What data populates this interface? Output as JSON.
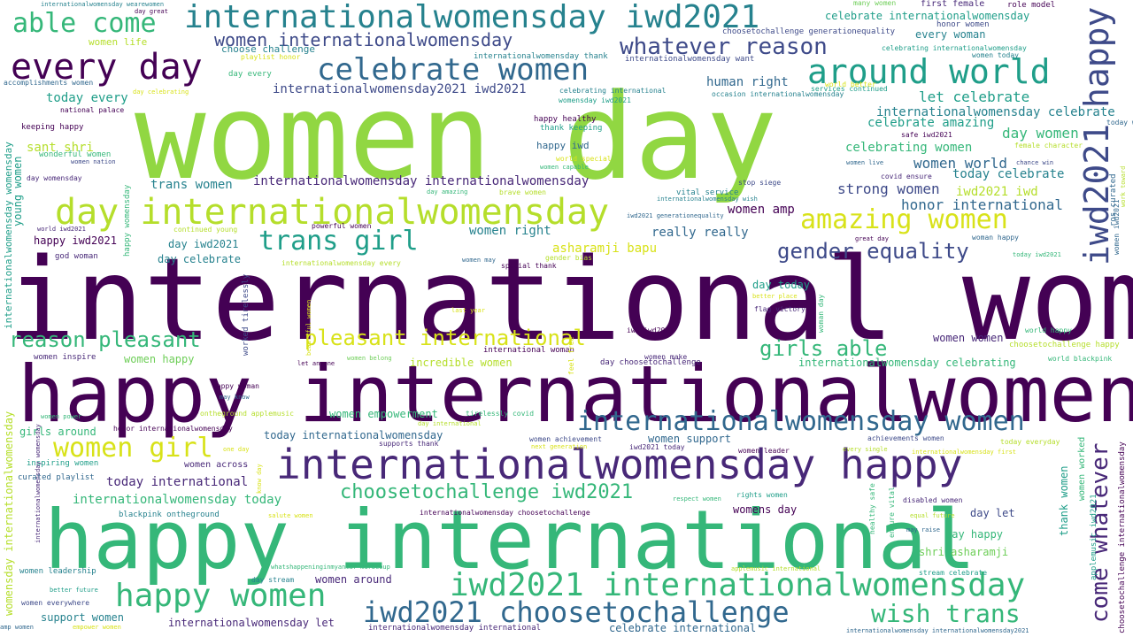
{
  "palette": {
    "dark_purple": "#440154",
    "purple": "#482878",
    "indigo": "#3e4a89",
    "blue": "#31688e",
    "teal": "#26828e",
    "sea_green": "#1f9e89",
    "green": "#35b779",
    "lime": "#6ece58",
    "yellow_green": "#b5de2b",
    "yellow": "#fde725"
  },
  "words": [
    {
      "text": "women day"
    },
    {
      "text": "international women"
    },
    {
      "text": "happy internationalwomensday"
    },
    {
      "text": "happy international"
    },
    {
      "text": "every day"
    },
    {
      "text": "internationalwomensday iwd2021"
    },
    {
      "text": "able come"
    },
    {
      "text": "celebrate women"
    },
    {
      "text": "around world"
    },
    {
      "text": "whatever reason"
    },
    {
      "text": "women internationalwomensday"
    },
    {
      "text": "day internationalwomensday"
    },
    {
      "text": "amazing women"
    },
    {
      "text": "trans girl"
    },
    {
      "text": "gender equality"
    },
    {
      "text": "reason pleasant"
    },
    {
      "text": "pleasant international"
    },
    {
      "text": "girls able"
    },
    {
      "text": "internationalwomensday women"
    },
    {
      "text": "internationalwomensday happy"
    },
    {
      "text": "women girl"
    },
    {
      "text": "choosetochallenge iwd2021"
    },
    {
      "text": "happy women"
    },
    {
      "text": "iwd2021 internationalwomensday"
    },
    {
      "text": "iwd2021 choosetochallenge"
    },
    {
      "text": "wish trans"
    },
    {
      "text": "happy"
    },
    {
      "text": "iwd2021"
    },
    {
      "text": "come whatever"
    },
    {
      "text": "internationalwomensday2021 iwd2021"
    },
    {
      "text": "today every"
    },
    {
      "text": "human right"
    },
    {
      "text": "let celebrate"
    },
    {
      "text": "internationalwomensday celebrate"
    },
    {
      "text": "celebrate amazing"
    },
    {
      "text": "day women"
    },
    {
      "text": "celebrating women"
    },
    {
      "text": "women world"
    },
    {
      "text": "today celebrate"
    },
    {
      "text": "strong women"
    },
    {
      "text": "iwd2021 iwd"
    },
    {
      "text": "honor international"
    },
    {
      "text": "women amp"
    },
    {
      "text": "sant shri"
    },
    {
      "text": "trans women"
    },
    {
      "text": "internationalwomensday internationalwomensday"
    },
    {
      "text": "really really"
    },
    {
      "text": "women right"
    },
    {
      "text": "asharamji bapu"
    },
    {
      "text": "day iwd2021"
    },
    {
      "text": "day celebrate"
    },
    {
      "text": "happy iwd2021"
    },
    {
      "text": "day today"
    },
    {
      "text": "women women"
    },
    {
      "text": "women happy"
    },
    {
      "text": "incredible women"
    },
    {
      "text": "internationalwomensday celebrating"
    },
    {
      "text": "women empowerment"
    },
    {
      "text": "today internationalwomensday"
    },
    {
      "text": "women support"
    },
    {
      "text": "girls around"
    },
    {
      "text": "today international"
    },
    {
      "text": "internationalwomensday today"
    },
    {
      "text": "womens day"
    },
    {
      "text": "day let"
    },
    {
      "text": "day happy"
    },
    {
      "text": "shri asharamji"
    },
    {
      "text": "women around"
    },
    {
      "text": "support women"
    },
    {
      "text": "internationalwomensday let"
    },
    {
      "text": "celebrate international"
    },
    {
      "text": "every woman"
    },
    {
      "text": "celebrate internationalwomensday"
    },
    {
      "text": "first female"
    },
    {
      "text": "role model"
    },
    {
      "text": "many women"
    },
    {
      "text": "choose challenge"
    },
    {
      "text": "choosetochallenge generationequality"
    },
    {
      "text": "women life"
    },
    {
      "text": "playlist honor"
    },
    {
      "text": "internationalwomensday thank"
    },
    {
      "text": "internationalwomensday want"
    },
    {
      "text": "honor women"
    },
    {
      "text": "celebrating internationalwomensday"
    },
    {
      "text": "women today"
    },
    {
      "text": "world better"
    },
    {
      "text": "day every"
    },
    {
      "text": "accomplishments women"
    },
    {
      "text": "day celebrating"
    },
    {
      "text": "celebrating international"
    },
    {
      "text": "womensday iwd2021"
    },
    {
      "text": "occasion internationalwomensday"
    },
    {
      "text": "services continued"
    },
    {
      "text": "keeping happy"
    },
    {
      "text": "national palace"
    },
    {
      "text": "happy healthy"
    },
    {
      "text": "thank keeping"
    },
    {
      "text": "happy iwd"
    },
    {
      "text": "safe iwd2021"
    },
    {
      "text": "today women"
    },
    {
      "text": "wonderful women"
    },
    {
      "text": "women nation"
    },
    {
      "text": "world special"
    },
    {
      "text": "women capable"
    },
    {
      "text": "female character"
    },
    {
      "text": "women live"
    },
    {
      "text": "chance win"
    },
    {
      "text": "covid ensure"
    },
    {
      "text": "day womensday"
    },
    {
      "text": "stop siege"
    },
    {
      "text": "vital service"
    },
    {
      "text": "internationalwomensday wish"
    },
    {
      "text": "iwd2021 generationequality"
    },
    {
      "text": "day amazing"
    },
    {
      "text": "brave women"
    },
    {
      "text": "continued young"
    },
    {
      "text": "powerful women"
    },
    {
      "text": "world iwd2021"
    },
    {
      "text": "god woman"
    },
    {
      "text": "internationalwomensday every"
    },
    {
      "text": "special thank"
    },
    {
      "text": "women may"
    },
    {
      "text": "gender bias"
    },
    {
      "text": "great day"
    },
    {
      "text": "woman happy"
    },
    {
      "text": "today iwd2021"
    },
    {
      "text": "better place"
    },
    {
      "text": "flag victory"
    },
    {
      "text": "last year"
    },
    {
      "text": "iwd iwd2021"
    },
    {
      "text": "world happy"
    },
    {
      "text": "international woman"
    },
    {
      "text": "women make"
    },
    {
      "text": "choosetochallenge happy"
    },
    {
      "text": "women inspire"
    },
    {
      "text": "let anyone"
    },
    {
      "text": "women belong"
    },
    {
      "text": "day choosetochallenge"
    },
    {
      "text": "world blackpink"
    },
    {
      "text": "happy woman"
    },
    {
      "text": "may know"
    },
    {
      "text": "women power"
    },
    {
      "text": "ontheground applemusic"
    },
    {
      "text": "tirelessly covid"
    },
    {
      "text": "day international"
    },
    {
      "text": "honor internationalwomensday"
    },
    {
      "text": "women achievement"
    },
    {
      "text": "achievements women"
    },
    {
      "text": "supports thank"
    },
    {
      "text": "next generation"
    },
    {
      "text": "iwd2021 today"
    },
    {
      "text": "women leader"
    },
    {
      "text": "every single"
    },
    {
      "text": "internationalwomensday first"
    },
    {
      "text": "today everyday"
    },
    {
      "text": "inspiring women"
    },
    {
      "text": "women across"
    },
    {
      "text": "one day"
    },
    {
      "text": "curated playlist"
    },
    {
      "text": "rights women"
    },
    {
      "text": "disabled women"
    },
    {
      "text": "blackpink ontheground"
    },
    {
      "text": "respect women"
    },
    {
      "text": "salute women"
    },
    {
      "text": "equal future"
    },
    {
      "text": "may raise"
    },
    {
      "text": "internationalwomensday choosetochallenge"
    },
    {
      "text": "women leadership"
    },
    {
      "text": "whatshappeninginmyanmar mar8coup"
    },
    {
      "text": "applemusic international"
    },
    {
      "text": "stream celebrate"
    },
    {
      "text": "day stream"
    },
    {
      "text": "better future"
    },
    {
      "text": "women everywhere"
    },
    {
      "text": "amp women"
    },
    {
      "text": "empower women"
    },
    {
      "text": "internationalwomensday international"
    },
    {
      "text": "internationalwomensday internationalwomensday2021"
    },
    {
      "text": "internationalwomensday wearewomen"
    },
    {
      "text": "day great"
    },
    {
      "text": "internationalwomensday womensday"
    },
    {
      "text": "young women"
    },
    {
      "text": "womensday internationalwomensday"
    },
    {
      "text": "happy womensday"
    },
    {
      "text": "worked tirelessly"
    },
    {
      "text": "beautiful women"
    },
    {
      "text": "feel free"
    },
    {
      "text": "know day"
    },
    {
      "text": "healthy safe"
    },
    {
      "text": "ensure vital"
    },
    {
      "text": "women worked"
    },
    {
      "text": "thank women"
    },
    {
      "text": "applemusic iwd2021"
    },
    {
      "text": "choosetochallenge internationalwomensday"
    },
    {
      "text": "women iwd2021"
    },
    {
      "text": "ros curated"
    },
    {
      "text": "work toward"
    },
    {
      "text": "woman day"
    },
    {
      "text": "internationalwomensday womensday"
    }
  ]
}
